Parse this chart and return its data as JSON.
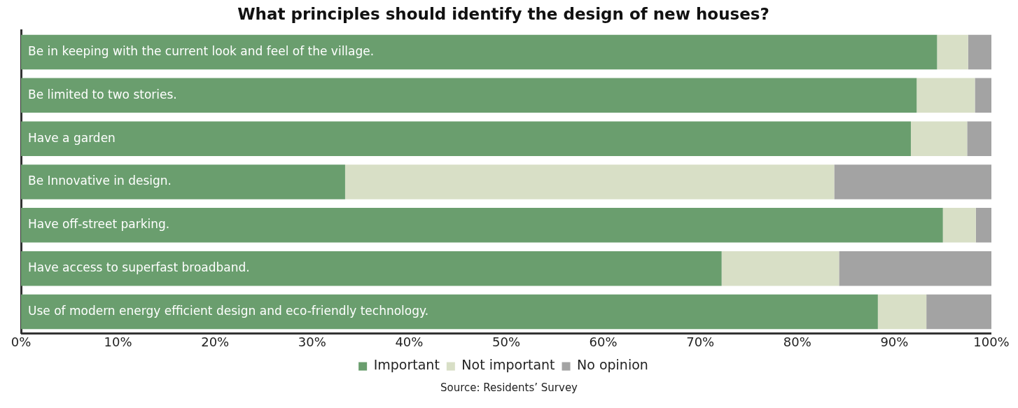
{
  "chart_data": {
    "type": "bar",
    "orientation": "horizontal",
    "stacked": true,
    "title": "What principles should identify the design of new houses?",
    "categories": [
      "Be in keeping with the current look and feel of the village.",
      "Be limited to two stories.",
      "Have a garden",
      "Be Innovative in design.",
      "Have off-street parking.",
      "Have access to superfast broadband.",
      "Use of modern energy efficient design and eco-friendly technology."
    ],
    "series": [
      {
        "name": "Important",
        "color": "#6a9e6e",
        "values": [
          94.4,
          92.3,
          91.7,
          33.4,
          95.0,
          72.2,
          88.3
        ]
      },
      {
        "name": "Not important",
        "color": "#d8dfc6",
        "values": [
          3.2,
          6.0,
          5.8,
          50.4,
          3.4,
          12.1,
          5.0
        ]
      },
      {
        "name": "No opinion",
        "color": "#a3a3a3",
        "values": [
          2.4,
          1.7,
          2.5,
          16.2,
          1.6,
          15.7,
          6.7
        ]
      }
    ],
    "xlim": [
      0,
      100
    ],
    "xticks": [
      {
        "value": 0,
        "label": "0%"
      },
      {
        "value": 10,
        "label": "10%"
      },
      {
        "value": 20,
        "label": "20%"
      },
      {
        "value": 30,
        "label": "30%"
      },
      {
        "value": 40,
        "label": "40%"
      },
      {
        "value": 50,
        "label": "50%"
      },
      {
        "value": 60,
        "label": "60%"
      },
      {
        "value": 70,
        "label": "70%"
      },
      {
        "value": 80,
        "label": "80%"
      },
      {
        "value": 90,
        "label": "90%"
      },
      {
        "value": 100,
        "label": "100%"
      }
    ],
    "grid": false,
    "legend": "bottom",
    "annotations": [
      "Source: Residents’ Survey"
    ]
  }
}
